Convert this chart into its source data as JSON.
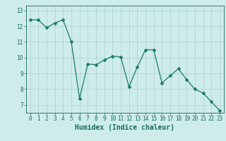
{
  "xlabel": "Humidex (Indice chaleur)",
  "x": [
    0,
    1,
    2,
    3,
    4,
    5,
    6,
    7,
    8,
    9,
    10,
    11,
    12,
    13,
    14,
    15,
    16,
    17,
    18,
    19,
    20,
    21,
    22,
    23
  ],
  "y": [
    12.4,
    12.4,
    11.9,
    12.2,
    12.4,
    11.0,
    7.4,
    9.6,
    9.55,
    9.85,
    10.1,
    10.05,
    8.15,
    9.4,
    10.5,
    10.5,
    8.4,
    8.85,
    9.3,
    8.6,
    8.0,
    7.75,
    7.2,
    6.65
  ],
  "line_color": "#1a7a6e",
  "marker": "D",
  "marker_size": 2.5,
  "bg_color": "#cdecea",
  "grid_color": "#aecfcd",
  "tick_label_color": "#1a6a60",
  "axis_label_color": "#1a6a60",
  "ylim": [
    6.5,
    13.3
  ],
  "xlim": [
    -0.5,
    23.5
  ],
  "yticks": [
    7,
    8,
    9,
    10,
    11,
    12,
    13
  ],
  "xticks": [
    0,
    1,
    2,
    3,
    4,
    5,
    6,
    7,
    8,
    9,
    10,
    11,
    12,
    13,
    14,
    15,
    16,
    17,
    18,
    19,
    20,
    21,
    22,
    23
  ],
  "tick_fontsize": 5.5,
  "xlabel_fontsize": 7.0
}
